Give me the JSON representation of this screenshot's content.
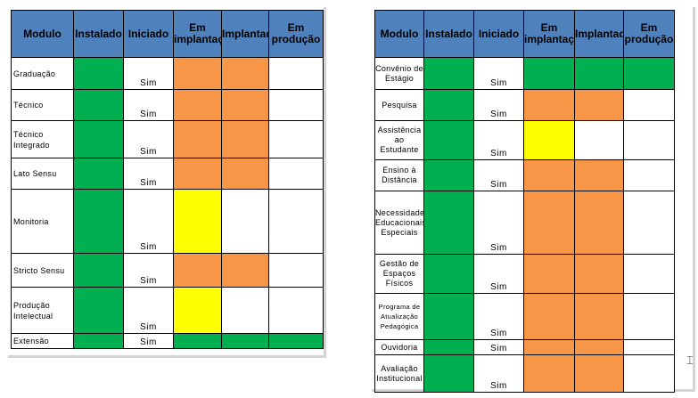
{
  "headers": [
    "Modulo",
    "Instalado",
    "Iniciado",
    "Em implantação",
    "Implantado",
    "Em produção"
  ],
  "left_table": {
    "rows": [
      {
        "modulo": "Graduação",
        "iniciado": "Sim",
        "colors": [
          "#00b050",
          "#ffffff",
          "#f79646",
          "#f79646",
          "#ffffff"
        ]
      },
      {
        "modulo": "Técnico",
        "iniciado": "Sim",
        "colors": [
          "#00b050",
          "#ffffff",
          "#f79646",
          "#f79646",
          "#ffffff"
        ]
      },
      {
        "modulo": "Técnico Integrado",
        "iniciado": "Sim",
        "colors": [
          "#00b050",
          "#ffffff",
          "#f79646",
          "#f79646",
          "#ffffff"
        ]
      },
      {
        "modulo": "Lato Sensu",
        "iniciado": "Sim",
        "colors": [
          "#00b050",
          "#ffffff",
          "#f79646",
          "#f79646",
          "#ffffff"
        ]
      },
      {
        "modulo": "Monitoria",
        "iniciado": "Sim",
        "colors": [
          "#00b050",
          "#ffffff",
          "#ffff00",
          "#ffffff",
          "#ffffff"
        ]
      },
      {
        "modulo": "Stricto Sensu",
        "iniciado": "Sim",
        "colors": [
          "#00b050",
          "#ffffff",
          "#f79646",
          "#f79646",
          "#ffffff"
        ]
      },
      {
        "modulo": "Produção Intelectual",
        "iniciado": "Sim",
        "colors": [
          "#00b050",
          "#ffffff",
          "#ffff00",
          "#ffffff",
          "#ffffff"
        ]
      },
      {
        "modulo": "Extensão",
        "iniciado": "Sim",
        "colors": [
          "#00b050",
          "#ffffff",
          "#00b050",
          "#00b050",
          "#00b050"
        ]
      }
    ]
  },
  "right_table": {
    "rows": [
      {
        "modulo": "Convênio de Estágio",
        "iniciado": "Sim",
        "colors": [
          "#00b050",
          "#ffffff",
          "#00b050",
          "#00b050",
          "#00b050"
        ]
      },
      {
        "modulo": "Pesquisa",
        "iniciado": "Sim",
        "colors": [
          "#00b050",
          "#ffffff",
          "#f79646",
          "#f79646",
          "#ffffff"
        ]
      },
      {
        "modulo": "Assistência ao Estudante",
        "iniciado": "Sim",
        "colors": [
          "#00b050",
          "#ffffff",
          "#ffff00",
          "#ffffff",
          "#ffffff"
        ]
      },
      {
        "modulo": "Ensino à Distância",
        "iniciado": "Sim",
        "colors": [
          "#00b050",
          "#ffffff",
          "#f79646",
          "#f79646",
          "#ffffff"
        ]
      },
      {
        "modulo": "Necessidades Educacionais Especiais",
        "iniciado": "Sim",
        "colors": [
          "#00b050",
          "#ffffff",
          "#f79646",
          "#f79646",
          "#ffffff"
        ]
      },
      {
        "modulo": "Gestão de Espaços Físicos",
        "iniciado": "Sim",
        "colors": [
          "#00b050",
          "#ffffff",
          "#f79646",
          "#f79646",
          "#ffffff"
        ]
      },
      {
        "modulo": "Programa de Atualização Pedagógica",
        "iniciado": "Sim",
        "colors": [
          "#00b050",
          "#ffffff",
          "#f79646",
          "#f79646",
          "#ffffff"
        ]
      },
      {
        "modulo": "Ouvidoria",
        "iniciado": "Sim",
        "colors": [
          "#00b050",
          "#ffffff",
          "#f79646",
          "#f79646",
          "#ffffff"
        ]
      },
      {
        "modulo": "Avaliação Institucional",
        "iniciado": "Sim",
        "colors": [
          "#00b050",
          "#ffffff",
          "#f79646",
          "#f79646",
          "#ffffff"
        ]
      }
    ]
  },
  "cursor_icon": "text-cursor-icon"
}
